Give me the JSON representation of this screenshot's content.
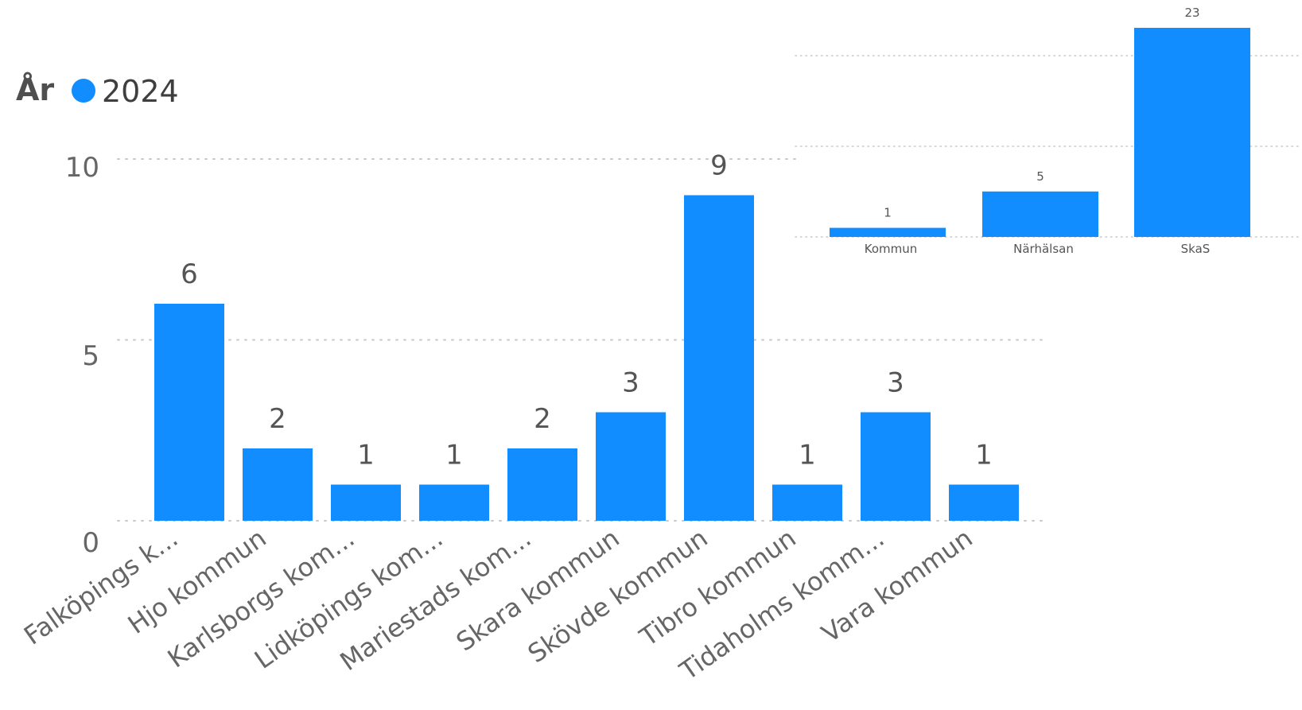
{
  "chart_data": [
    {
      "type": "bar",
      "legend": {
        "title": "År",
        "placement": "top-left",
        "entries": [
          {
            "label": "2024",
            "color": "#118DFF"
          }
        ]
      },
      "categories": [
        "Falköpings k...",
        "Hjo kommun",
        "Karlsborgs kom...",
        "Lidköpings kom...",
        "Mariestads kom...",
        "Skara kommun",
        "Skövde kommun",
        "Tibro kommun",
        "Tidaholms komm...",
        "Vara kommun"
      ],
      "series": [
        {
          "name": "2024",
          "color": "#118DFF",
          "values": [
            6,
            2,
            1,
            1,
            2,
            3,
            9,
            1,
            3,
            1
          ]
        }
      ],
      "yticks": [
        "0",
        "5",
        "10"
      ],
      "ylim": [
        0,
        10
      ],
      "grid": true
    },
    {
      "type": "bar",
      "categories": [
        "Kommun",
        "Närhälsan",
        "SkaS"
      ],
      "series": [
        {
          "color": "#118DFF",
          "values": [
            1,
            5,
            23
          ]
        }
      ],
      "ylim": [
        0,
        23
      ],
      "grid": true
    }
  ]
}
